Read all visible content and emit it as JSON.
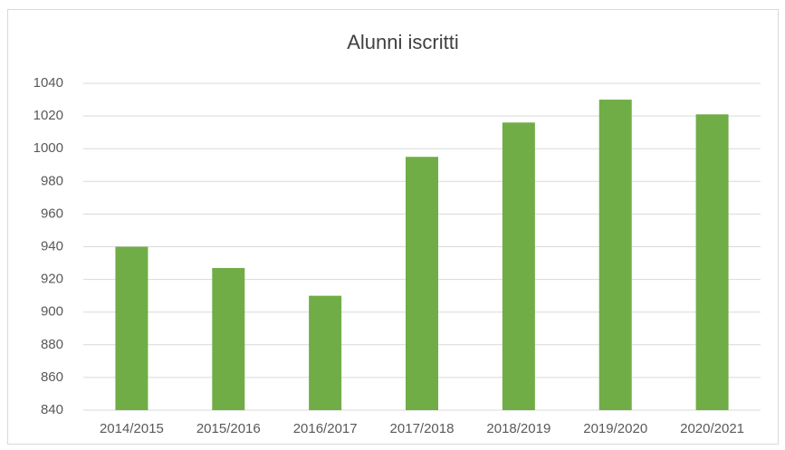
{
  "chart_data": {
    "type": "bar",
    "title": "Alunni iscritti",
    "categories": [
      "2014/2015",
      "2015/2016",
      "2016/2017",
      "2017/2018",
      "2018/2019",
      "2019/2020",
      "2020/2021"
    ],
    "values": [
      940,
      927,
      910,
      995,
      1016,
      1030,
      1021
    ],
    "color": "#70ad47",
    "ylim": [
      840,
      1040
    ],
    "yticks": [
      840,
      860,
      880,
      900,
      920,
      940,
      960,
      980,
      1000,
      1020,
      1040
    ],
    "grid": true
  }
}
